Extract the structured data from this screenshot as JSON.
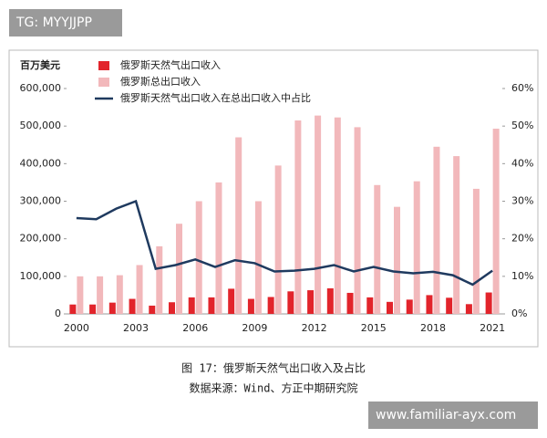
{
  "watermarks": {
    "top": "TG: MYYJJPP",
    "bottom": "www.familiar-ayx.com"
  },
  "chart_data": {
    "type": "bar-line",
    "y_label": "百万美元",
    "caption": "图 17：俄罗斯天然气出口收入及占比",
    "source": "数据来源：Wind、方正中期研究院",
    "categories": [
      "2000",
      null,
      null,
      "2003",
      null,
      null,
      "2006",
      null,
      null,
      "2009",
      null,
      null,
      "2012",
      null,
      null,
      "2015",
      null,
      null,
      "2018",
      null,
      null,
      "2021"
    ],
    "series": [
      {
        "name": "俄罗斯天然气出口收入",
        "type": "bar",
        "color": "#e2242b",
        "values": [
          25000,
          25000,
          30000,
          40000,
          22000,
          31000,
          44000,
          44000,
          67000,
          40000,
          45000,
          60000,
          63000,
          68000,
          56000,
          44000,
          32000,
          38000,
          50000,
          43000,
          26000,
          57000
        ]
      },
      {
        "name": "俄罗斯总出口收入",
        "type": "bar",
        "color": "#f2b8bb",
        "values": [
          100000,
          100000,
          103000,
          130000,
          180000,
          240000,
          300000,
          350000,
          470000,
          300000,
          395000,
          515000,
          528000,
          523000,
          497000,
          343000,
          285000,
          353000,
          445000,
          420000,
          333000,
          493000
        ]
      },
      {
        "name": "俄罗斯天然气出口收入在总出口收入中占比",
        "type": "line",
        "axis": "y2",
        "color": "#1f3a5f",
        "values": [
          25.5,
          25.2,
          28,
          30,
          12,
          13,
          14.5,
          12.5,
          14.3,
          13.5,
          11.3,
          11.5,
          12,
          13,
          11.3,
          12.5,
          11.3,
          10.8,
          11.2,
          10.3,
          7.8,
          11.5
        ]
      }
    ],
    "ylim": [
      0,
      600000
    ],
    "yticks": [
      {
        "value": 0,
        "label": "0"
      },
      {
        "value": 100000,
        "label": "100,000"
      },
      {
        "value": 200000,
        "label": "200,000"
      },
      {
        "value": 300000,
        "label": "300,000"
      },
      {
        "value": 400000,
        "label": "400,000"
      },
      {
        "value": 500000,
        "label": "500,000"
      },
      {
        "value": 600000,
        "label": "600,000"
      }
    ],
    "y2lim": [
      0,
      60
    ],
    "y2ticks": [
      {
        "value": 0,
        "label": "0%"
      },
      {
        "value": 10,
        "label": "10%"
      },
      {
        "value": 20,
        "label": "20%"
      },
      {
        "value": 30,
        "label": "30%"
      },
      {
        "value": 40,
        "label": "40%"
      },
      {
        "value": 50,
        "label": "50%"
      },
      {
        "value": 60,
        "label": "60%"
      }
    ],
    "grid": false,
    "legend": "top-left"
  }
}
